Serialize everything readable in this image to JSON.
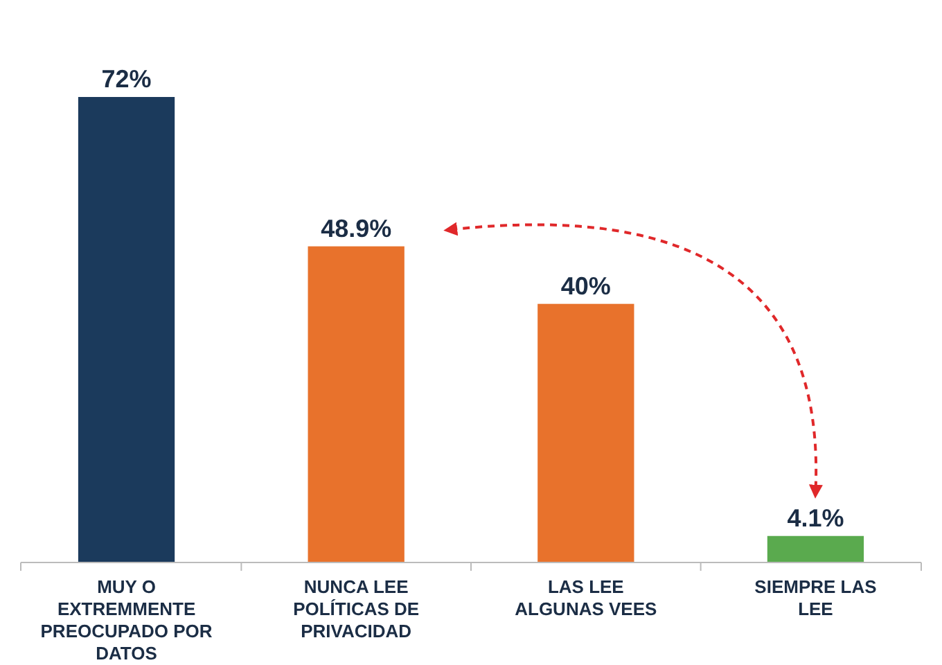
{
  "chart_data": {
    "type": "bar",
    "categories": [
      "MUY O EXTREMMENTE PREOCUPADO POR DATOS",
      "NUNCA LEE POLÍTICAS DE PRIVACIDAD",
      "LAS LEE ALGUNAS VEES",
      "SIEMPRE LAS LEE"
    ],
    "values": [
      72,
      48.9,
      40,
      4.1
    ],
    "colors": [
      "#1b3a5c",
      "#e8722c",
      "#e8722c",
      "#5aaa4e"
    ],
    "value_labels": [
      "72%",
      "48.9%",
      "40%",
      "4.1%"
    ]
  }
}
